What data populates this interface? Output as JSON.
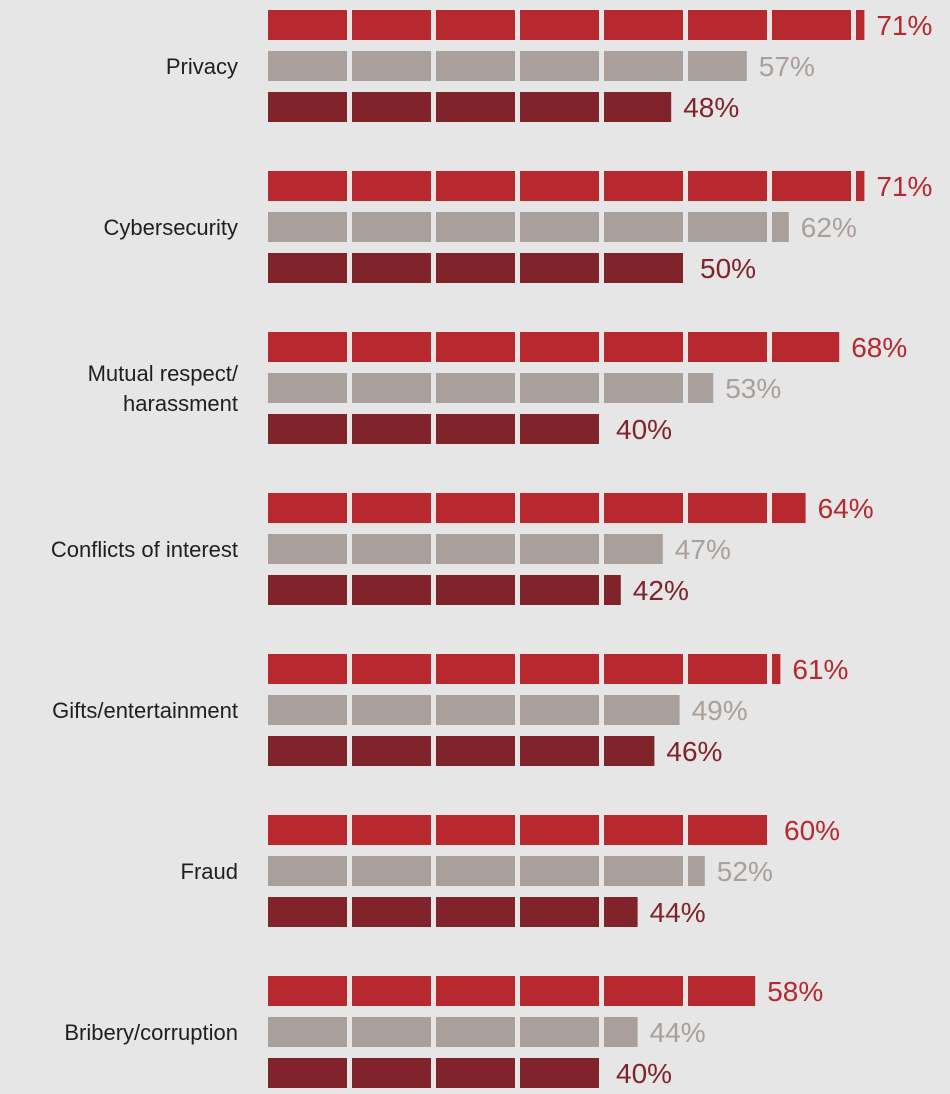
{
  "chart_data": {
    "type": "bar",
    "orientation": "horizontal",
    "style": "segmented",
    "segment_step": 10,
    "categories": [
      "Privacy",
      "Cybersecurity",
      "Mutual respect/\nharassment",
      "Conflicts of interest",
      "Gifts/entertainment",
      "Fraud",
      "Bribery/corruption"
    ],
    "series": [
      {
        "color": "#b8282f",
        "values": [
          71,
          71,
          68,
          64,
          61,
          60,
          58
        ],
        "labels": [
          "71%",
          "71%",
          "68%",
          "64%",
          "61%",
          "60%",
          "58%"
        ]
      },
      {
        "color": "#aaa09b",
        "values": [
          57,
          62,
          53,
          47,
          49,
          52,
          44
        ],
        "labels": [
          "57%",
          "62%",
          "53%",
          "47%",
          "49%",
          "52%",
          "44%"
        ]
      },
      {
        "color": "#81232a",
        "values": [
          48,
          50,
          40,
          42,
          46,
          44,
          40
        ],
        "labels": [
          "48%",
          "50%",
          "40%",
          "42%",
          "46%",
          "44%",
          "40%"
        ]
      }
    ],
    "xlim": [
      0,
      71
    ],
    "grid": false,
    "legend": "none"
  }
}
